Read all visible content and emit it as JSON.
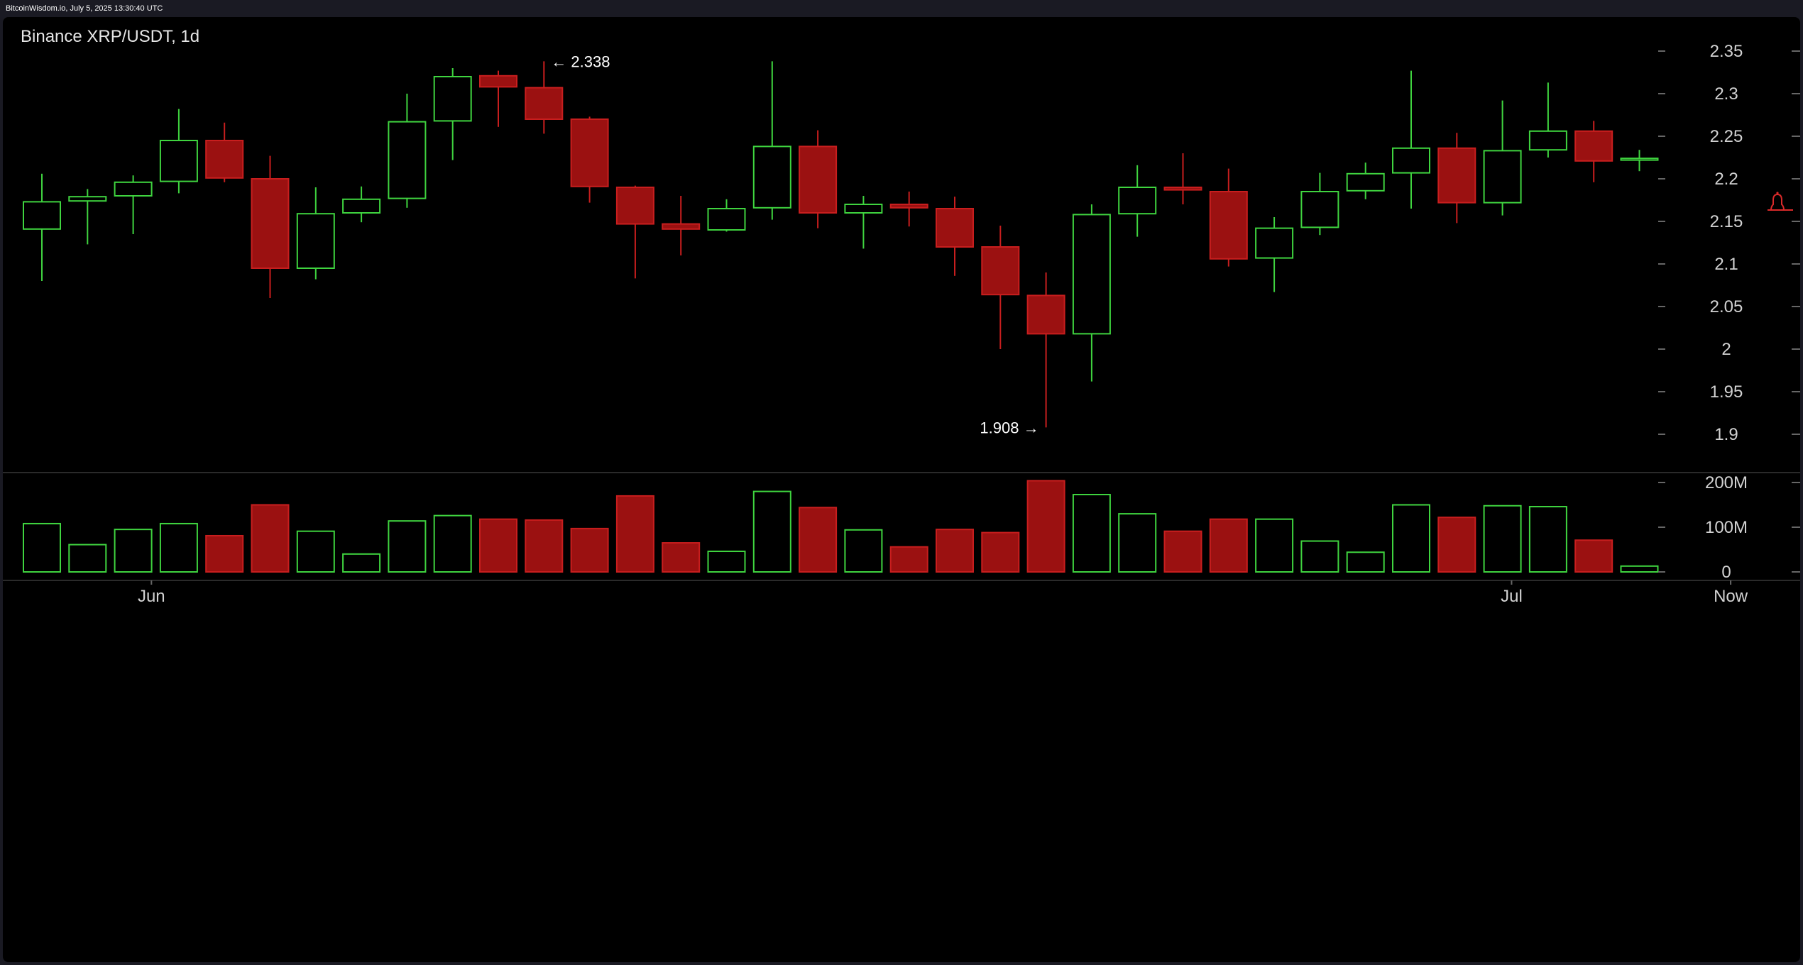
{
  "header": {
    "source": "BitcoinWisdom.io, July 5, 2025 13:30:40 UTC"
  },
  "colors": {
    "up": "#3fd43f",
    "down": "#c81e1e",
    "down_fill": "#9b1111",
    "background": "#000000",
    "axis_text": "#d2d2d2",
    "alert": "#d92a2a"
  },
  "alert_icon": "bell-icon",
  "chart_data": {
    "type": "candlestick",
    "title": "Binance XRP/USDT, 1d",
    "ylim": [
      1.88,
      2.37
    ],
    "yticks": [
      1.9,
      1.95,
      2,
      2.05,
      2.1,
      2.15,
      2.2,
      2.25,
      2.3,
      2.35
    ],
    "ytick_labels": [
      "1.9",
      "1.95",
      "2",
      "2.05",
      "2.1",
      "2.15",
      "2.2",
      "2.25",
      "2.3",
      "2.35"
    ],
    "volume_ylim": [
      0,
      200
    ],
    "volume_ticks": [
      0,
      100,
      200
    ],
    "volume_tick_labels": [
      "0",
      "100M",
      "200M"
    ],
    "volume_unit": "M",
    "x_labels": [
      {
        "label": "Jun",
        "index": 2.4
      },
      {
        "label": "Jul",
        "index": 32.2
      },
      {
        "label": "Now",
        "index": 37.0
      }
    ],
    "annotations": [
      {
        "text": "← 2.338",
        "index": 11,
        "value": 2.338,
        "side": "right"
      },
      {
        "text": "1.908 →",
        "index": 22,
        "value": 1.908,
        "side": "left"
      }
    ],
    "candles": [
      {
        "open": 2.141,
        "high": 2.206,
        "low": 2.08,
        "close": 2.173,
        "volume": 108
      },
      {
        "open": 2.174,
        "high": 2.188,
        "low": 2.123,
        "close": 2.179,
        "volume": 61
      },
      {
        "open": 2.18,
        "high": 2.204,
        "low": 2.135,
        "close": 2.196,
        "volume": 95
      },
      {
        "open": 2.197,
        "high": 2.282,
        "low": 2.183,
        "close": 2.245,
        "volume": 108
      },
      {
        "open": 2.245,
        "high": 2.266,
        "low": 2.196,
        "close": 2.201,
        "volume": 81
      },
      {
        "open": 2.2,
        "high": 2.227,
        "low": 2.06,
        "close": 2.095,
        "volume": 150
      },
      {
        "open": 2.095,
        "high": 2.19,
        "low": 2.082,
        "close": 2.159,
        "volume": 91
      },
      {
        "open": 2.16,
        "high": 2.191,
        "low": 2.149,
        "close": 2.176,
        "volume": 40
      },
      {
        "open": 2.177,
        "high": 2.3,
        "low": 2.166,
        "close": 2.267,
        "volume": 114
      },
      {
        "open": 2.268,
        "high": 2.33,
        "low": 2.222,
        "close": 2.32,
        "volume": 126
      },
      {
        "open": 2.321,
        "high": 2.327,
        "low": 2.261,
        "close": 2.308,
        "volume": 118
      },
      {
        "open": 2.307,
        "high": 2.338,
        "low": 2.253,
        "close": 2.27,
        "volume": 116
      },
      {
        "open": 2.27,
        "high": 2.273,
        "low": 2.172,
        "close": 2.191,
        "volume": 97
      },
      {
        "open": 2.19,
        "high": 2.192,
        "low": 2.083,
        "close": 2.147,
        "volume": 170
      },
      {
        "open": 2.147,
        "high": 2.18,
        "low": 2.11,
        "close": 2.141,
        "volume": 65
      },
      {
        "open": 2.14,
        "high": 2.176,
        "low": 2.138,
        "close": 2.165,
        "volume": 46
      },
      {
        "open": 2.166,
        "high": 2.338,
        "low": 2.152,
        "close": 2.238,
        "volume": 180
      },
      {
        "open": 2.238,
        "high": 2.257,
        "low": 2.142,
        "close": 2.16,
        "volume": 144
      },
      {
        "open": 2.16,
        "high": 2.18,
        "low": 2.118,
        "close": 2.17,
        "volume": 94
      },
      {
        "open": 2.17,
        "high": 2.185,
        "low": 2.144,
        "close": 2.166,
        "volume": 56
      },
      {
        "open": 2.165,
        "high": 2.179,
        "low": 2.086,
        "close": 2.12,
        "volume": 95
      },
      {
        "open": 2.12,
        "high": 2.145,
        "low": 2.0,
        "close": 2.064,
        "volume": 88
      },
      {
        "open": 2.063,
        "high": 2.09,
        "low": 1.908,
        "close": 2.018,
        "volume": 204
      },
      {
        "open": 2.018,
        "high": 2.17,
        "low": 1.962,
        "close": 2.158,
        "volume": 173
      },
      {
        "open": 2.159,
        "high": 2.216,
        "low": 2.132,
        "close": 2.19,
        "volume": 130
      },
      {
        "open": 2.19,
        "high": 2.23,
        "low": 2.17,
        "close": 2.187,
        "volume": 91
      },
      {
        "open": 2.185,
        "high": 2.212,
        "low": 2.097,
        "close": 2.106,
        "volume": 118
      },
      {
        "open": 2.107,
        "high": 2.155,
        "low": 2.067,
        "close": 2.142,
        "volume": 118
      },
      {
        "open": 2.143,
        "high": 2.207,
        "low": 2.134,
        "close": 2.185,
        "volume": 69
      },
      {
        "open": 2.186,
        "high": 2.219,
        "low": 2.176,
        "close": 2.206,
        "volume": 44
      },
      {
        "open": 2.207,
        "high": 2.327,
        "low": 2.165,
        "close": 2.236,
        "volume": 150
      },
      {
        "open": 2.236,
        "high": 2.254,
        "low": 2.148,
        "close": 2.172,
        "volume": 122
      },
      {
        "open": 2.172,
        "high": 2.292,
        "low": 2.157,
        "close": 2.233,
        "volume": 148
      },
      {
        "open": 2.234,
        "high": 2.313,
        "low": 2.225,
        "close": 2.256,
        "volume": 146
      },
      {
        "open": 2.256,
        "high": 2.268,
        "low": 2.196,
        "close": 2.221,
        "volume": 71
      },
      {
        "open": 2.222,
        "high": 2.234,
        "low": 2.209,
        "close": 2.224,
        "volume": 13
      }
    ]
  }
}
